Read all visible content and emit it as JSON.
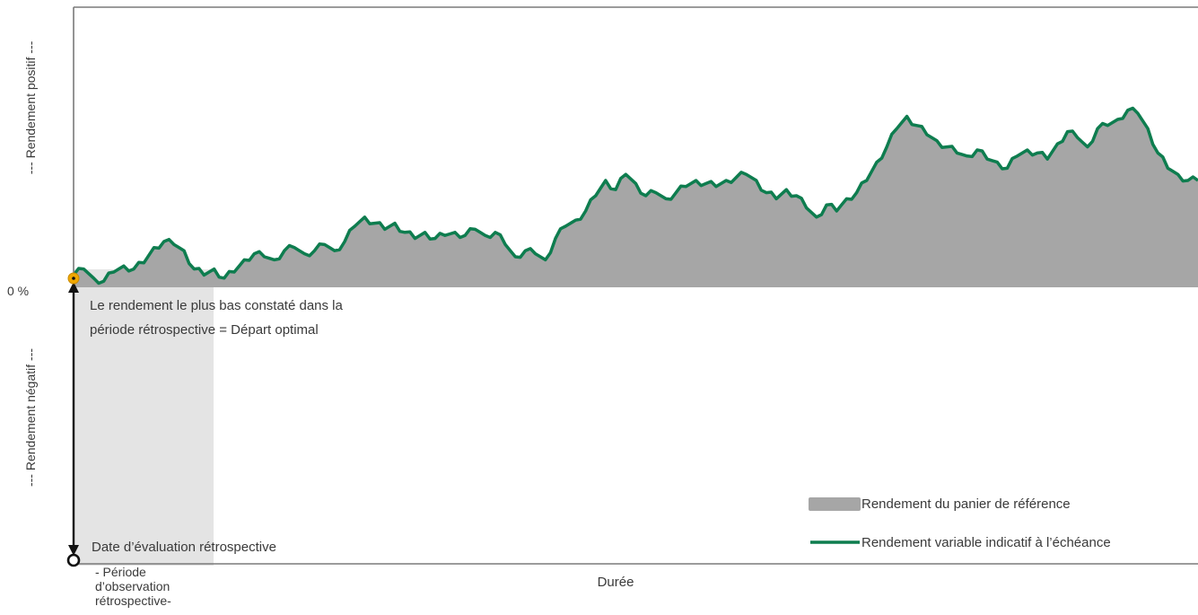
{
  "chart_data": {
    "type": "area",
    "title": "",
    "xlabel": "Durée",
    "ylabel_positive": "--- Rendement positif ---",
    "ylabel_negative": "--- Rendement négatif ---",
    "zero_label": "0 %",
    "y": [
      0.04,
      0.06,
      0.03,
      0.02,
      0.05,
      0.07,
      0.06,
      0.08,
      0.13,
      0.15,
      0.14,
      0.12,
      0.06,
      0.04,
      0.06,
      0.03,
      0.05,
      0.09,
      0.11,
      0.1,
      0.09,
      0.12,
      0.13,
      0.11,
      0.12,
      0.14,
      0.12,
      0.15,
      0.2,
      0.23,
      0.21,
      0.19,
      0.21,
      0.18,
      0.16,
      0.18,
      0.16,
      0.17,
      0.18,
      0.17,
      0.19,
      0.17,
      0.18,
      0.14,
      0.1,
      0.12,
      0.11,
      0.09,
      0.16,
      0.2,
      0.22,
      0.25,
      0.3,
      0.35,
      0.32,
      0.37,
      0.34,
      0.3,
      0.31,
      0.29,
      0.31,
      0.33,
      0.35,
      0.34,
      0.33,
      0.35,
      0.36,
      0.37,
      0.35,
      0.31,
      0.29,
      0.32,
      0.3,
      0.26,
      0.23,
      0.27,
      0.25,
      0.29,
      0.31,
      0.35,
      0.41,
      0.46,
      0.52,
      0.56,
      0.53,
      0.5,
      0.48,
      0.46,
      0.44,
      0.43,
      0.45,
      0.42,
      0.41,
      0.39,
      0.43,
      0.45,
      0.44,
      0.42,
      0.47,
      0.51,
      0.49,
      0.46,
      0.52,
      0.53,
      0.55,
      0.58,
      0.57,
      0.52,
      0.44,
      0.39,
      0.37,
      0.35,
      0.35
    ],
    "zero_level": 0,
    "legend": [
      {
        "label": "Rendement du panier de référence",
        "color": "#a6a6a6",
        "kind": "area"
      },
      {
        "label": "Rendement variable indicatif à l’échéance",
        "color": "#0e7d4f",
        "kind": "line"
      }
    ],
    "legend_placement": "bottom-right",
    "annotations": {
      "start_label_line1": "Le rendement le plus bas constaté dans la",
      "start_label_line2": "période rétrospective = Départ optimal",
      "eval_date_label": "Date d’évaluation rétrospective",
      "period_line1": "- Période",
      "period_line2": "d’observation",
      "period_line3": "rétrospective-"
    },
    "grid": false
  }
}
